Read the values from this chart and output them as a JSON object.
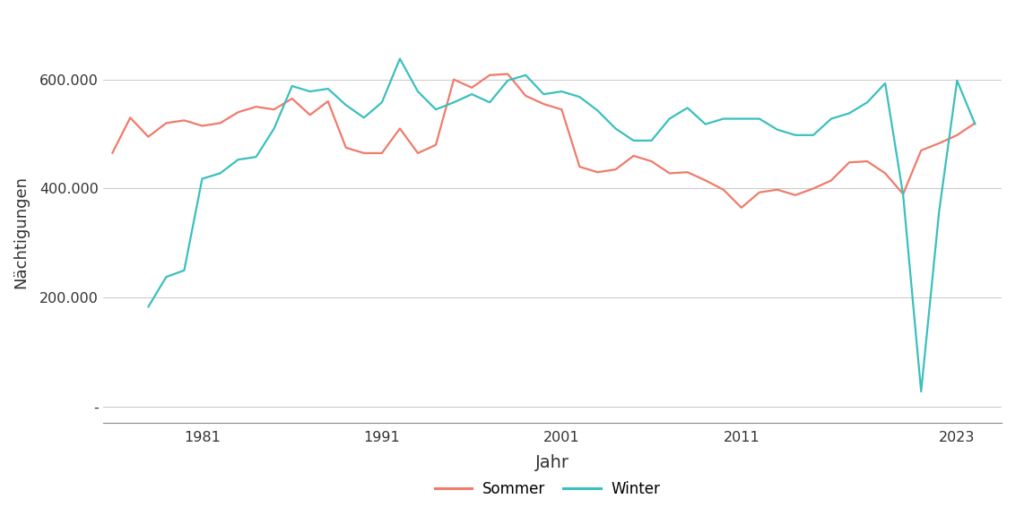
{
  "years": [
    1976,
    1977,
    1978,
    1979,
    1980,
    1981,
    1982,
    1983,
    1984,
    1985,
    1986,
    1987,
    1988,
    1989,
    1990,
    1991,
    1992,
    1993,
    1994,
    1995,
    1996,
    1997,
    1998,
    1999,
    2000,
    2001,
    2002,
    2003,
    2004,
    2005,
    2006,
    2007,
    2008,
    2009,
    2010,
    2011,
    2012,
    2013,
    2014,
    2015,
    2016,
    2017,
    2018,
    2019,
    2020,
    2021,
    2022,
    2023,
    2024
  ],
  "sommer": [
    465000,
    530000,
    495000,
    520000,
    525000,
    515000,
    520000,
    540000,
    550000,
    545000,
    565000,
    535000,
    560000,
    475000,
    465000,
    465000,
    510000,
    465000,
    480000,
    600000,
    585000,
    608000,
    610000,
    570000,
    555000,
    545000,
    440000,
    430000,
    435000,
    460000,
    450000,
    428000,
    430000,
    415000,
    398000,
    365000,
    393000,
    398000,
    388000,
    400000,
    415000,
    448000,
    450000,
    428000,
    390000,
    470000,
    483000,
    498000,
    520000
  ],
  "winter": [
    null,
    null,
    183000,
    238000,
    250000,
    418000,
    428000,
    453000,
    458000,
    510000,
    588000,
    578000,
    583000,
    553000,
    530000,
    558000,
    638000,
    578000,
    545000,
    558000,
    573000,
    558000,
    598000,
    608000,
    573000,
    578000,
    568000,
    543000,
    510000,
    488000,
    488000,
    528000,
    548000,
    518000,
    528000,
    528000,
    528000,
    508000,
    498000,
    498000,
    528000,
    538000,
    558000,
    593000,
    388000,
    28000,
    358000,
    598000,
    518000
  ],
  "sommer_color": "#F07B6A",
  "winter_color": "#3BBFBF",
  "background_color": "#FFFFFF",
  "grid_color": "#C8C8C8",
  "xlabel": "Jahr",
  "ylabel": "Nächtigungen",
  "xticks": [
    1981,
    1991,
    2001,
    2011,
    2023
  ],
  "yticks": [
    0,
    200000,
    400000,
    600000
  ],
  "ytick_labels": [
    "-",
    "200.000",
    "400.000",
    "600.000"
  ],
  "ylim": [
    -30000,
    670000
  ],
  "xlim": [
    1975.5,
    2025.5
  ],
  "line_width": 1.6,
  "legend_labels": [
    "Sommer",
    "Winter"
  ],
  "legend_colors": [
    "#F07B6A",
    "#3BBFBF"
  ]
}
